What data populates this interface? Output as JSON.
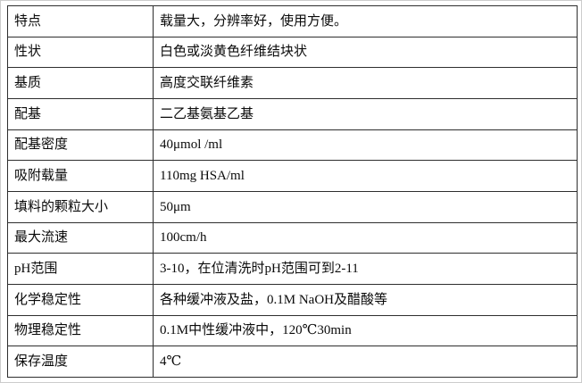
{
  "page": {
    "background": "#ffffff",
    "edge_border_color": "#cccccc"
  },
  "table": {
    "border_color": "#2e2e2e",
    "text_color": "#0a0a0a",
    "rows": [
      {
        "label": "特点",
        "value": "载量大，分辨率好，使用方便。"
      },
      {
        "label": "性状",
        "value": "白色或淡黄色纤维结块状"
      },
      {
        "label": "基质",
        "value": "高度交联纤维素"
      },
      {
        "label": "配基",
        "value": "二乙基氨基乙基"
      },
      {
        "label": "配基密度",
        "value": "40μmol /ml"
      },
      {
        "label": "吸附载量",
        "value": "110mg HSA/ml"
      },
      {
        "label": "填料的颗粒大小",
        "value": "50μm"
      },
      {
        "label": "最大流速",
        "value": "100cm/h"
      },
      {
        "label": "pH范围",
        "value": "3-10，在位清洗时pH范围可到2-11"
      },
      {
        "label": "化学稳定性",
        "value": "各种缓冲液及盐，0.1M NaOH及醋酸等"
      },
      {
        "label": "物理稳定性",
        "value": "0.1M中性缓冲液中，120℃30min"
      },
      {
        "label": "保存温度",
        "value": "4℃"
      }
    ]
  }
}
